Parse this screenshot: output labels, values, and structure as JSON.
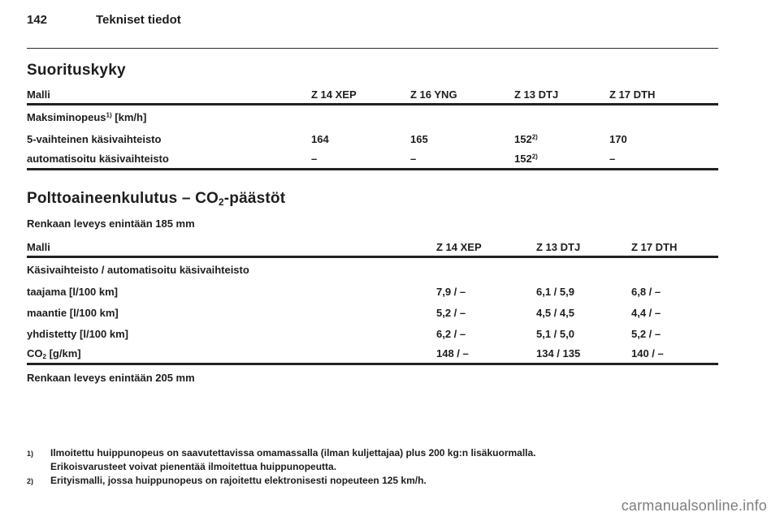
{
  "page": {
    "number": "142",
    "chapter": "Tekniset tiedot"
  },
  "performance": {
    "title": "Suorituskyky",
    "table": {
      "col_header": "Malli",
      "columns": [
        "Z 14 XEP",
        "Z 16 YNG",
        "Z 13 DTJ",
        "Z 17 DTH"
      ],
      "group": {
        "label": "Maksiminopeus",
        "sup": "1)",
        "unit": " [km/h]"
      },
      "rows": [
        {
          "label": "5-vaihteinen käsivaihteisto",
          "values": [
            "164",
            "165",
            "152",
            "170"
          ],
          "sups": [
            "",
            "",
            "2)",
            ""
          ]
        },
        {
          "label": "automatisoitu käsivaihteisto",
          "values": [
            "–",
            "–",
            "152",
            "–"
          ],
          "sups": [
            "",
            "",
            "2)",
            ""
          ]
        }
      ]
    }
  },
  "fuel": {
    "title": {
      "pre": "Polttoaineenkulutus – CO",
      "sub": "2",
      "post": "-päästöt"
    },
    "note_before": "Renkaan leveys enintään 185 mm",
    "table": {
      "col_header": "Malli",
      "columns": [
        "Z 14 XEP",
        "Z 13 DTJ",
        "Z 17 DTH"
      ],
      "group_label": "Käsivaihteisto / automatisoitu käsivaihteisto",
      "rows": [
        {
          "label": "taajama [l/100 km]",
          "values": [
            "7,9 / –",
            "6,1 / 5,9",
            "6,8 / –"
          ]
        },
        {
          "label": "maantie [l/100 km]",
          "values": [
            "5,2 / –",
            "4,5 / 4,5",
            "4,4 / –"
          ]
        },
        {
          "label": "yhdistetty [l/100 km]",
          "values": [
            "6,2 / –",
            "5,1 / 5,0",
            "5,2 / –"
          ]
        }
      ],
      "co2_row": {
        "pre": "CO",
        "sub": "2",
        "post": " [g/km]",
        "values": [
          "148 / –",
          "134 / 135",
          "140 / –"
        ]
      }
    },
    "note_after": "Renkaan leveys enintään 205 mm"
  },
  "footnotes": [
    {
      "marker": "1)",
      "line1": "Ilmoitettu huippunopeus on saavutettavissa omamassalla (ilman kuljettajaa) plus 200 kg:n lisäkuormalla.",
      "line2": "Erikoisvarusteet voivat pienentää ilmoitettua huippunopeutta."
    },
    {
      "marker": "2)",
      "line1": "Erityismalli, jossa huippunopeus on rajoitettu elektronisesti nopeuteen 125 km/h."
    }
  ],
  "watermark": "carmanualsonline.info",
  "colors": {
    "text": "#1d1d1d",
    "watermark": "#7e7e7e",
    "background": "#ffffff"
  }
}
